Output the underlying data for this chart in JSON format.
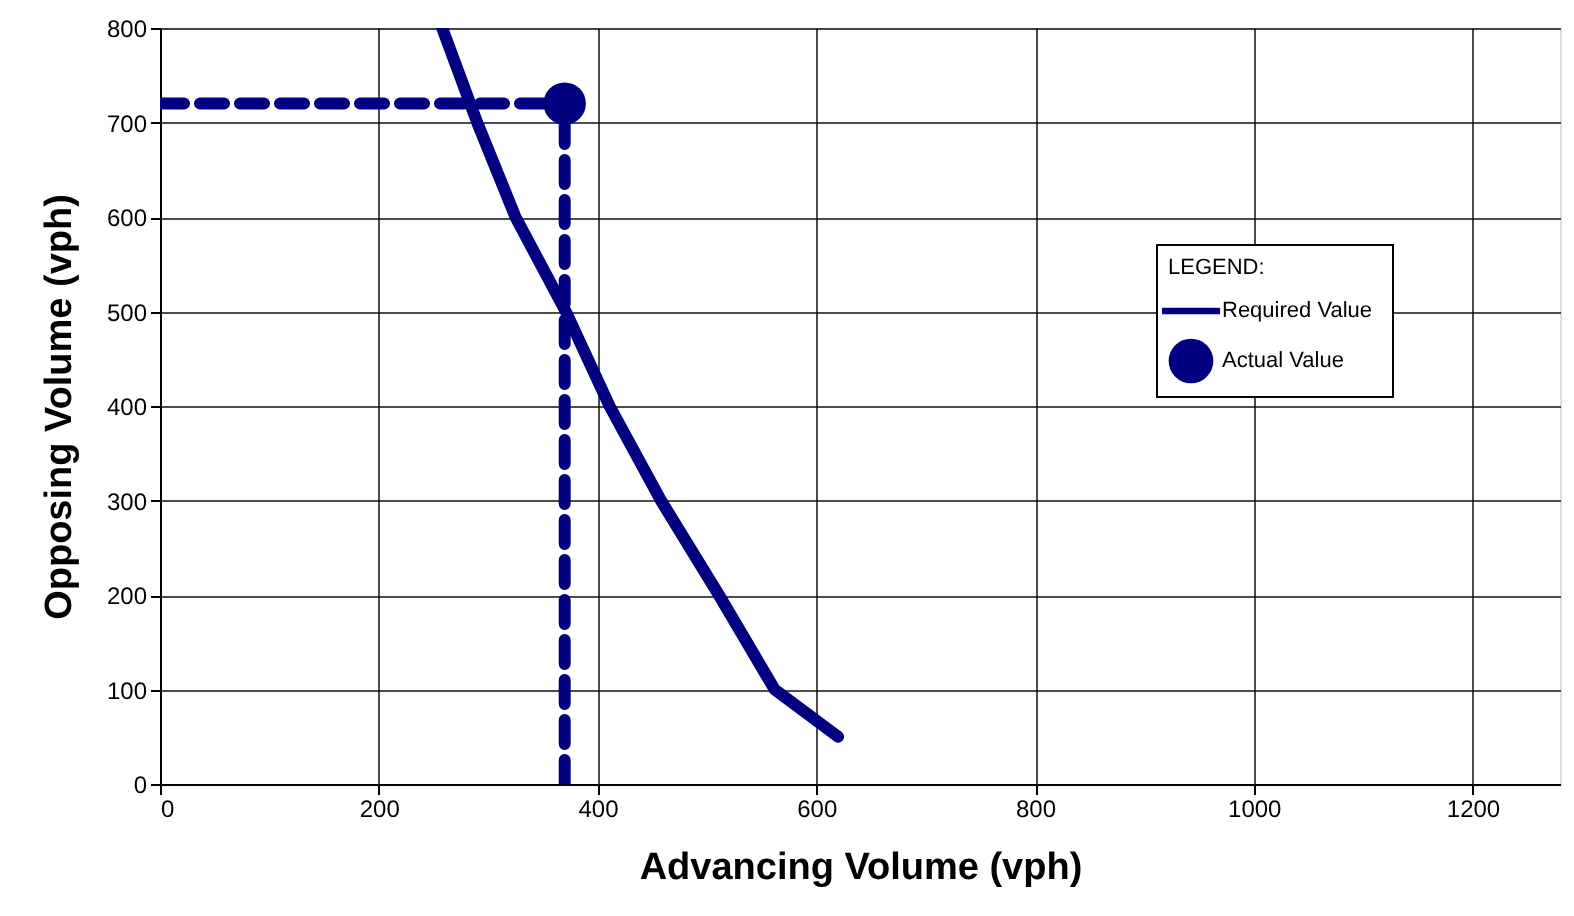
{
  "chart_data": {
    "type": "line",
    "xlabel": "Advancing Volume (vph)",
    "ylabel": "Opposing Volume (vph)",
    "legend_title": "LEGEND:",
    "xlim": [
      0,
      1280
    ],
    "ylim": [
      0,
      800
    ],
    "xticks": [
      0,
      200,
      400,
      600,
      800,
      1000,
      1200
    ],
    "yticks": [
      0,
      100,
      200,
      300,
      400,
      500,
      600,
      700,
      800
    ],
    "grid": true,
    "legend": "right",
    "series": [
      {
        "color": "#000080",
        "line_style": "dashed",
        "x": [
          0,
          370
        ],
        "values": [
          720,
          720
        ]
      },
      {
        "color": "#000080",
        "line_style": "dashed",
        "x": [
          370,
          370
        ],
        "values": [
          0,
          720
        ]
      },
      {
        "name": "Required  Value",
        "color": "#000080",
        "line_style": "solid",
        "x": [
          258,
          290,
          325,
          371,
          411,
          458,
          511,
          562,
          620
        ],
        "values": [
          800,
          700,
          600,
          500,
          400,
          300,
          200,
          100,
          50
        ]
      },
      {
        "name": "Actual Value",
        "type": "scatter",
        "color": "#000080",
        "marker": "circle",
        "x": [
          370
        ],
        "values": [
          720
        ]
      }
    ]
  }
}
